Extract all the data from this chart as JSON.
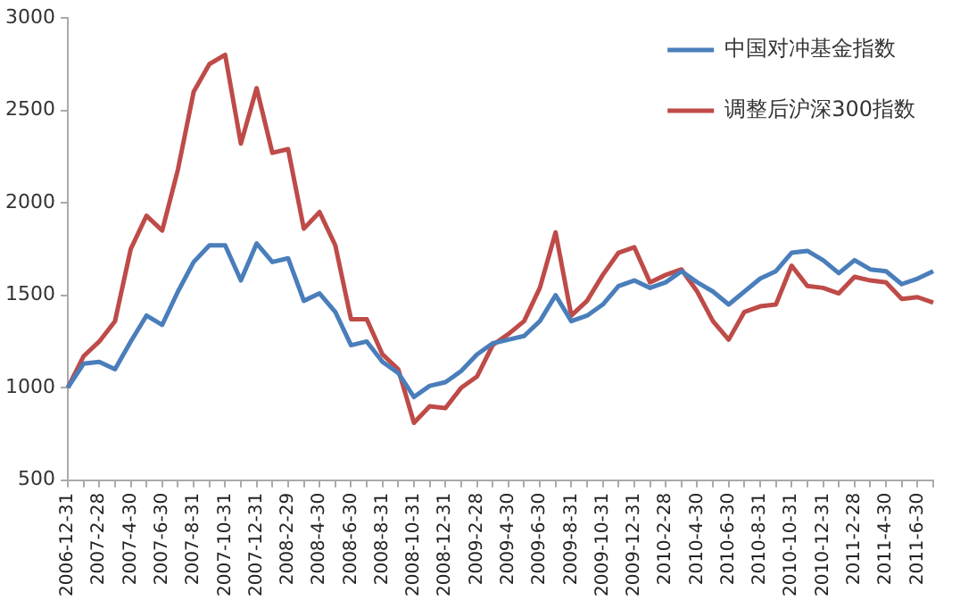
{
  "chart_data": {
    "type": "line",
    "categories": [
      "2006-12-31",
      null,
      "2007-2-28",
      null,
      "2007-4-30",
      null,
      "2007-6-30",
      null,
      "2007-8-31",
      null,
      "2007-10-31",
      null,
      "2007-12-31",
      null,
      "2008-2-29",
      null,
      "2008-4-30",
      null,
      "2008-6-30",
      null,
      "2008-8-31",
      null,
      "2008-10-31",
      null,
      "2008-12-31",
      null,
      "2009-2-28",
      null,
      "2009-4-30",
      null,
      "2009-6-30",
      null,
      "2009-8-31",
      null,
      "2009-10-31",
      null,
      "2009-12-31",
      null,
      "2010-2-28",
      null,
      "2010-4-30",
      null,
      "2010-6-30",
      null,
      "2010-8-31",
      null,
      "2010-10-31",
      null,
      "2010-12-31",
      null,
      "2011-2-28",
      null,
      "2011-4-30",
      null,
      "2011-6-30",
      null
    ],
    "series": [
      {
        "name": "中国对冲基金指数",
        "color": "#4a7ebb",
        "values": [
          1000,
          1130,
          1140,
          1100,
          1250,
          1390,
          1340,
          1520,
          1680,
          1770,
          1770,
          1580,
          1780,
          1680,
          1700,
          1470,
          1510,
          1410,
          1230,
          1250,
          1140,
          1080,
          950,
          1010,
          1030,
          1090,
          1180,
          1240,
          1260,
          1280,
          1360,
          1500,
          1360,
          1390,
          1450,
          1550,
          1580,
          1540,
          1570,
          1630,
          1570,
          1520,
          1450,
          1520,
          1590,
          1630,
          1730,
          1740,
          1690,
          1620,
          1690,
          1640,
          1630,
          1560,
          1590,
          1630
        ]
      },
      {
        "name": "调整后沪深300指数",
        "color": "#be4b48",
        "values": [
          1000,
          1170,
          1250,
          1360,
          1750,
          1930,
          1850,
          2180,
          2600,
          2750,
          2800,
          2320,
          2620,
          2270,
          2290,
          1860,
          1950,
          1770,
          1370,
          1370,
          1180,
          1100,
          810,
          900,
          890,
          1000,
          1060,
          1230,
          1290,
          1360,
          1540,
          1840,
          1390,
          1470,
          1610,
          1730,
          1760,
          1570,
          1610,
          1640,
          1520,
          1360,
          1260,
          1410,
          1440,
          1450,
          1660,
          1550,
          1540,
          1510,
          1600,
          1580,
          1570,
          1480,
          1490,
          1460
        ]
      }
    ],
    "ylim": [
      500,
      3000
    ],
    "yticks": [
      500,
      1000,
      1500,
      2000,
      2500,
      3000
    ],
    "grid": false,
    "legend": "top right",
    "marker": "none",
    "line_style": "solid"
  }
}
